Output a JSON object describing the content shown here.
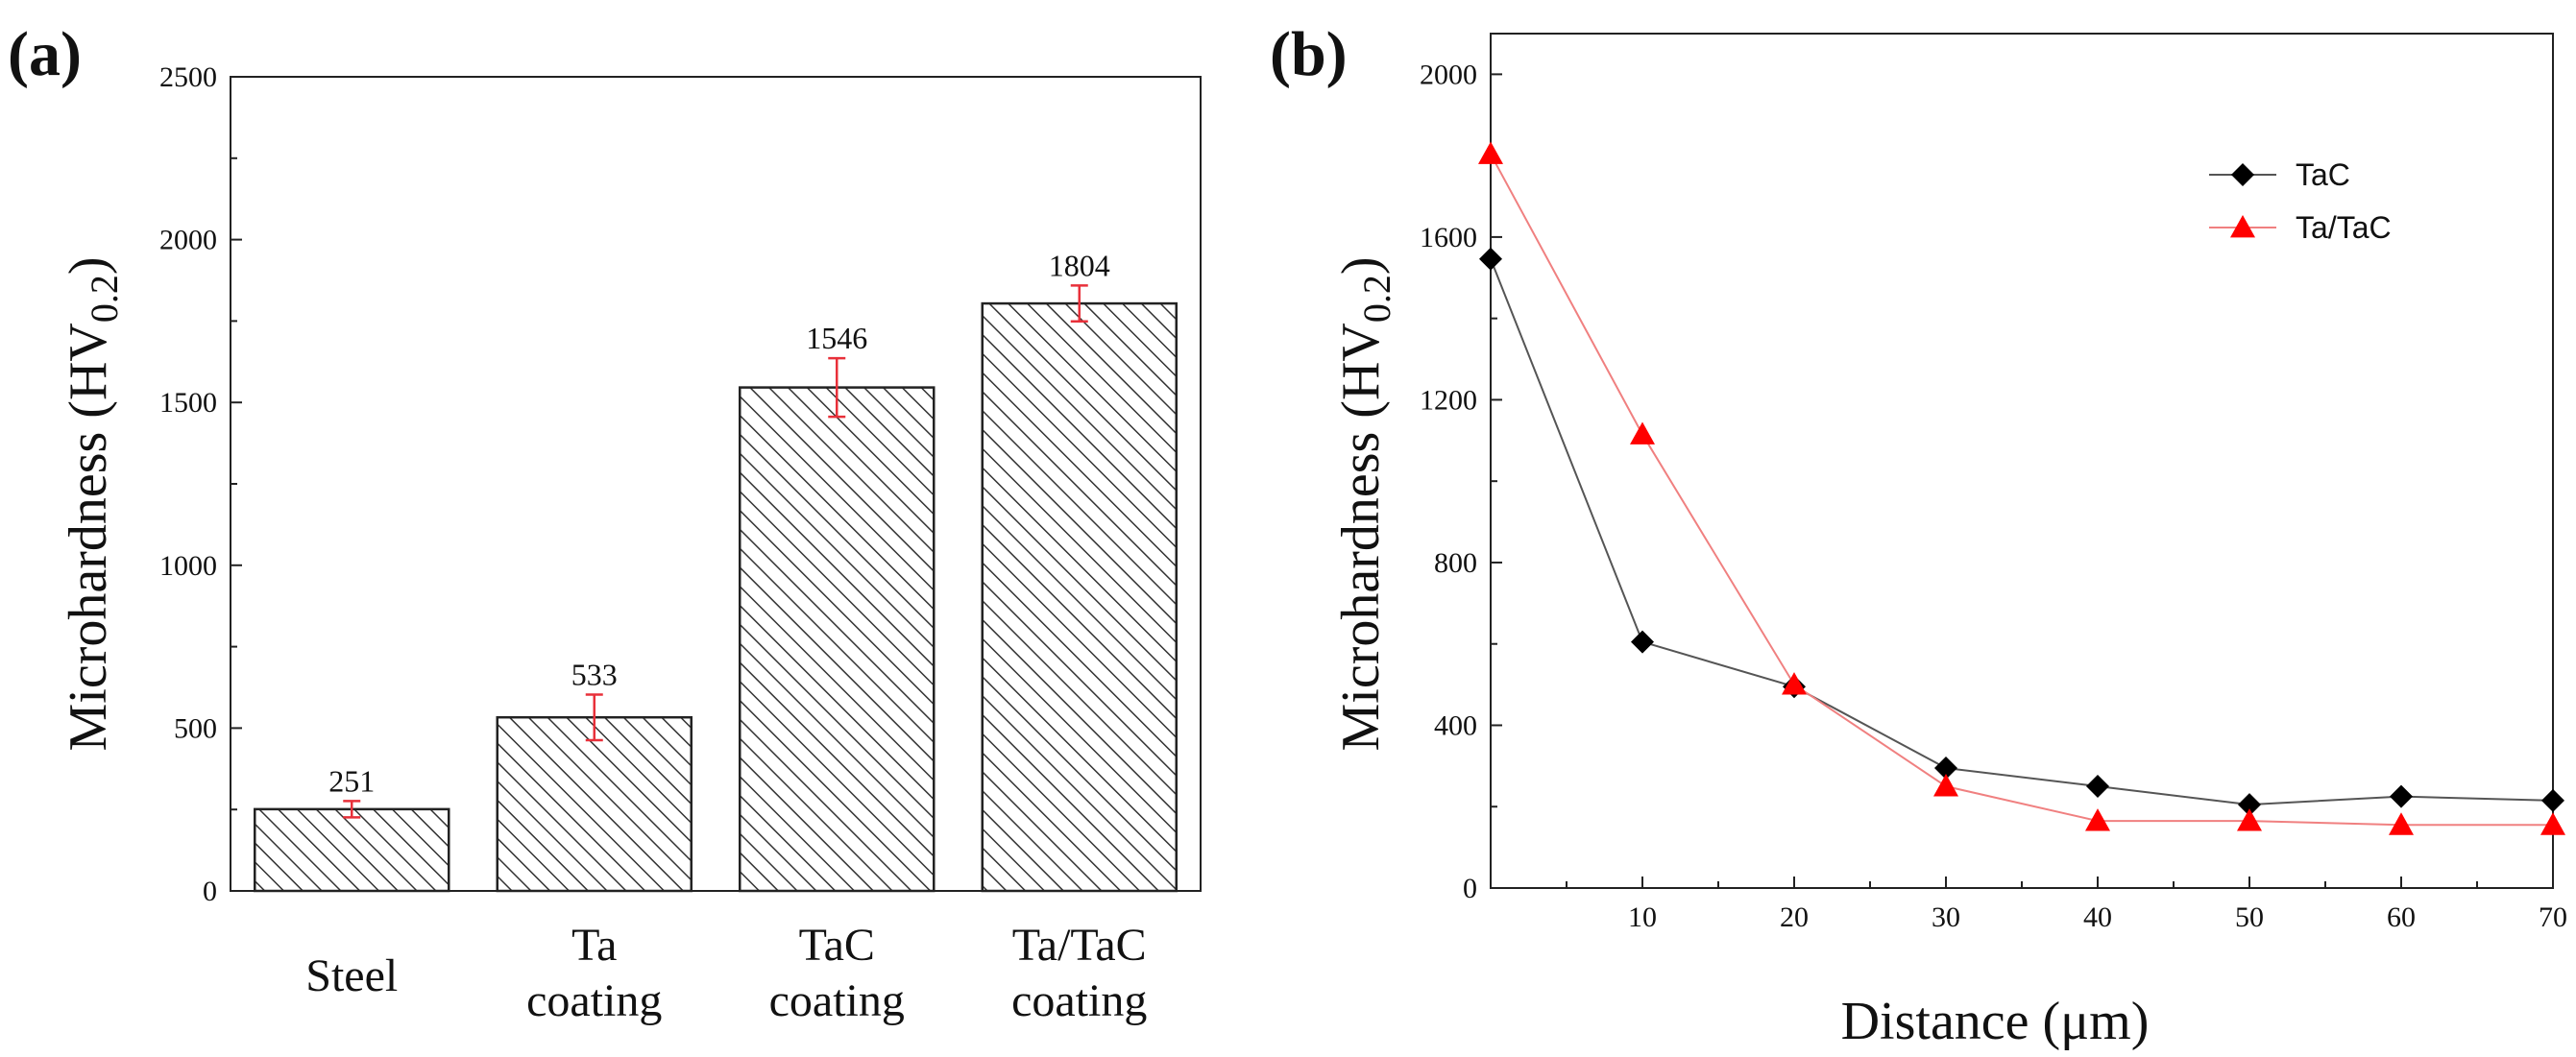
{
  "chart_data": [
    {
      "type": "bar",
      "panel_label": "(a)",
      "title": "",
      "xlabel": "",
      "ylabel": "Microhardness (HV",
      "ylabel_subscript": "0.2",
      "ylabel_close": ")",
      "ylim": [
        0,
        2500
      ],
      "yticks": [
        0,
        500,
        1000,
        1500,
        2000,
        2500
      ],
      "categories": [
        [
          "Steel"
        ],
        [
          "Ta",
          "coating"
        ],
        [
          "TaC",
          "coating"
        ],
        [
          "Ta/TaC",
          "coating"
        ]
      ],
      "values": [
        251,
        533,
        1546,
        1804
      ],
      "value_labels": [
        "251",
        "533",
        "1546",
        "1804"
      ],
      "errors": [
        25,
        70,
        90,
        55
      ],
      "bar_fill": "hatched",
      "error_color": "#e8303a",
      "grid": false
    },
    {
      "type": "line",
      "panel_label": "(b)",
      "title": "",
      "xlabel": "Distance (μm)",
      "ylabel": "Microhardness (HV",
      "ylabel_subscript": "0.2",
      "ylabel_close": ")",
      "xlim": [
        0,
        70
      ],
      "ylim": [
        0,
        2100
      ],
      "xticks": [
        10,
        20,
        30,
        40,
        50,
        60,
        70
      ],
      "yticks": [
        0,
        400,
        800,
        1200,
        1600,
        2000
      ],
      "legend_position": "top-right",
      "grid": false,
      "series": [
        {
          "name": "TaC",
          "marker": "diamond",
          "color": "#000000",
          "line_color": "#555555",
          "x": [
            0,
            10,
            20,
            30,
            40,
            50,
            60,
            70
          ],
          "y": [
            1546,
            605,
            495,
            295,
            250,
            205,
            225,
            215
          ]
        },
        {
          "name": "Ta/TaC",
          "marker": "triangle",
          "color": "#ff0000",
          "line_color": "#f08080",
          "x": [
            0,
            10,
            20,
            30,
            40,
            50,
            60,
            70
          ],
          "y": [
            1804,
            1115,
            500,
            250,
            165,
            165,
            155,
            155
          ]
        }
      ]
    }
  ]
}
